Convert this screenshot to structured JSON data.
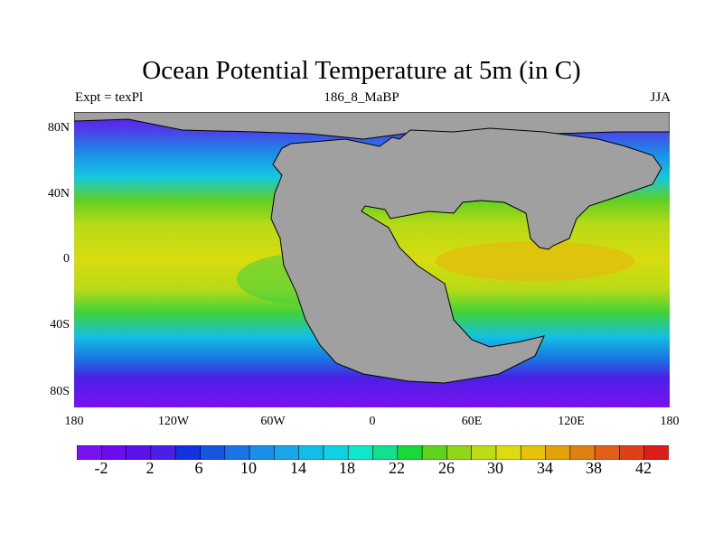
{
  "title": "Ocean Potential Temperature at 5m (in C)",
  "subtitle_left": "Expt = texPl",
  "subtitle_center": "186_8_MaBP",
  "subtitle_right": "JJA",
  "lat_ticks": [
    "80N",
    "40N",
    "0",
    "40S",
    "80S"
  ],
  "lon_ticks": [
    "180",
    "120W",
    "60W",
    "0",
    "60E",
    "120E",
    "180"
  ],
  "colorbar": {
    "labels": [
      "-2",
      "2",
      "6",
      "10",
      "14",
      "18",
      "22",
      "26",
      "30",
      "34",
      "38",
      "42"
    ],
    "colors": [
      "#7a11f0",
      "#6a0cef",
      "#5a12ea",
      "#4c1fe6",
      "#1133dd",
      "#1555e0",
      "#1a74e4",
      "#1c8fe8",
      "#19a6e8",
      "#14bde6",
      "#10d2e0",
      "#10e6c8",
      "#10e090",
      "#18d83a",
      "#5fd21c",
      "#92d618",
      "#bcdc14",
      "#dcdc10",
      "#e6c20a",
      "#e2a20a",
      "#e08012",
      "#e26016",
      "#e04018",
      "#dc1e1a"
    ],
    "lands_color": "#a0a0a0"
  }
}
